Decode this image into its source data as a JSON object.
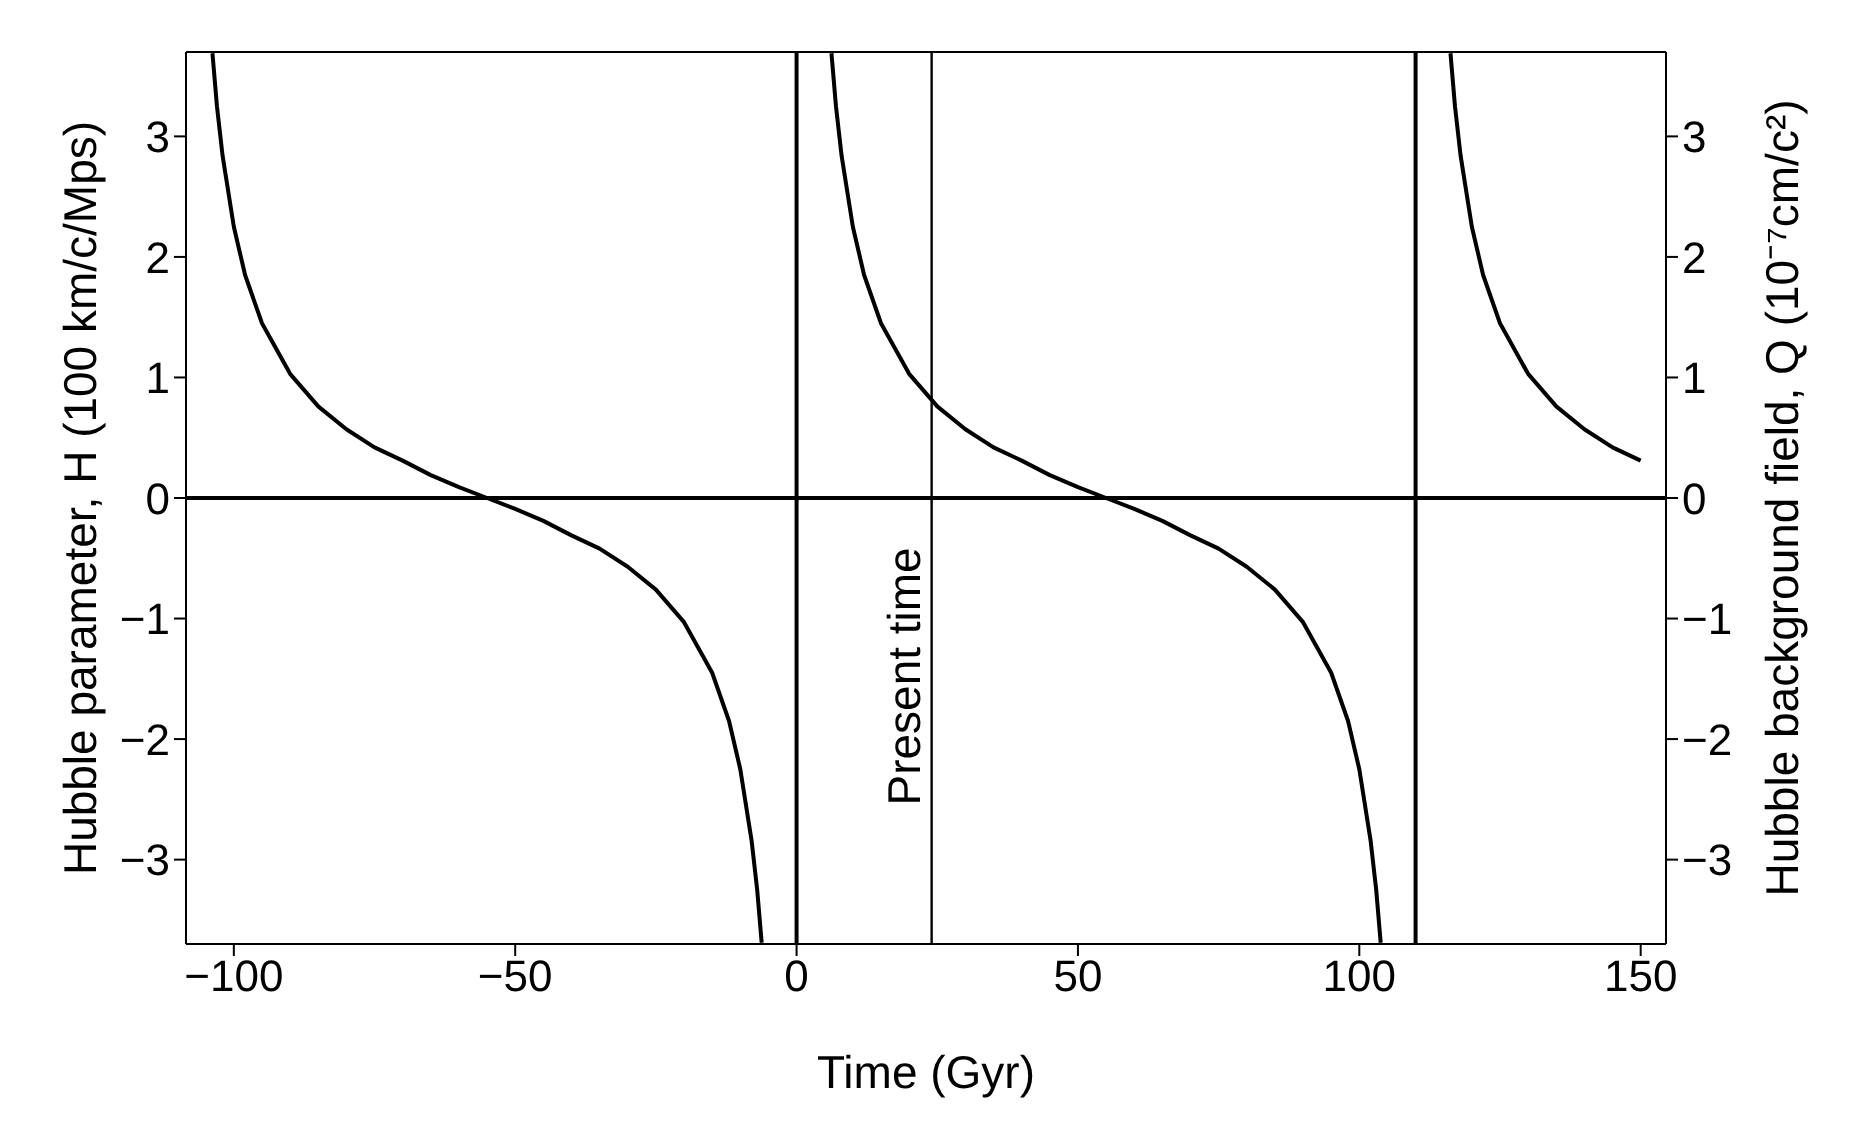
{
  "chart_data": {
    "type": "line",
    "xlabel": "Time (Gyr)",
    "ylabel": "Hubble parameter, H (100 km/c/Mps)",
    "y2label": "Hubble background field, Q (10⁻⁷cm/c²)",
    "xlim": [
      -108.5,
      154.5
    ],
    "xticks": [
      -100,
      -50,
      0,
      50,
      100,
      150
    ],
    "ylim": [
      -3.7,
      3.7
    ],
    "yticks": [
      -3,
      -2,
      -1,
      0,
      1,
      2,
      3
    ],
    "y2lim": [
      -3.7,
      3.7
    ],
    "y2ticks": [
      -3,
      -2,
      -1,
      0,
      1,
      2,
      3
    ],
    "grid": false,
    "marker": "none",
    "line_style": "solid",
    "series": [
      {
        "color": "#000000",
        "x": [
          -103.8,
          -103,
          -102,
          -100,
          -98,
          -95,
          -90,
          -85,
          -80,
          -75,
          -70,
          -65,
          -60,
          -55,
          -50,
          -45,
          -40,
          -35,
          -30,
          -25,
          -20,
          -15,
          -12,
          -10,
          -8,
          -7,
          -6.2
        ],
        "values": [
          3.69,
          3.25,
          2.84,
          2.25,
          1.85,
          1.45,
          1.03,
          0.76,
          0.57,
          0.42,
          0.31,
          0.19,
          0.09,
          0,
          -0.09,
          -0.19,
          -0.31,
          -0.42,
          -0.57,
          -0.76,
          -1.03,
          -1.45,
          -1.85,
          -2.25,
          -2.84,
          -3.25,
          -3.69
        ]
      },
      {
        "color": "#000000",
        "x": [
          6.2,
          7,
          8,
          10,
          12,
          15,
          20,
          25,
          30,
          35,
          40,
          45,
          50,
          55,
          60,
          65,
          70,
          75,
          80,
          85,
          90,
          95,
          98,
          100,
          102,
          103,
          103.8
        ],
        "values": [
          3.69,
          3.25,
          2.84,
          2.25,
          1.85,
          1.45,
          1.03,
          0.76,
          0.57,
          0.42,
          0.31,
          0.19,
          0.09,
          0,
          -0.09,
          -0.19,
          -0.31,
          -0.42,
          -0.57,
          -0.76,
          -1.03,
          -1.45,
          -1.85,
          -2.25,
          -2.84,
          -3.25,
          -3.69
        ]
      },
      {
        "color": "#000000",
        "x": [
          116.2,
          117,
          118,
          120,
          122,
          125,
          130,
          135,
          140,
          145,
          150
        ],
        "values": [
          3.69,
          3.25,
          2.84,
          2.25,
          1.85,
          1.45,
          1.03,
          0.76,
          0.57,
          0.42,
          0.31
        ]
      }
    ],
    "ref_lines": [
      {
        "axis": "y",
        "value": 0,
        "color": "#000000"
      },
      {
        "axis": "x",
        "value": 0,
        "color": "#000000"
      },
      {
        "axis": "x",
        "value": 110,
        "color": "#000000"
      },
      {
        "axis": "x",
        "value": 24,
        "label": "Present time",
        "color": "#000000"
      }
    ]
  }
}
